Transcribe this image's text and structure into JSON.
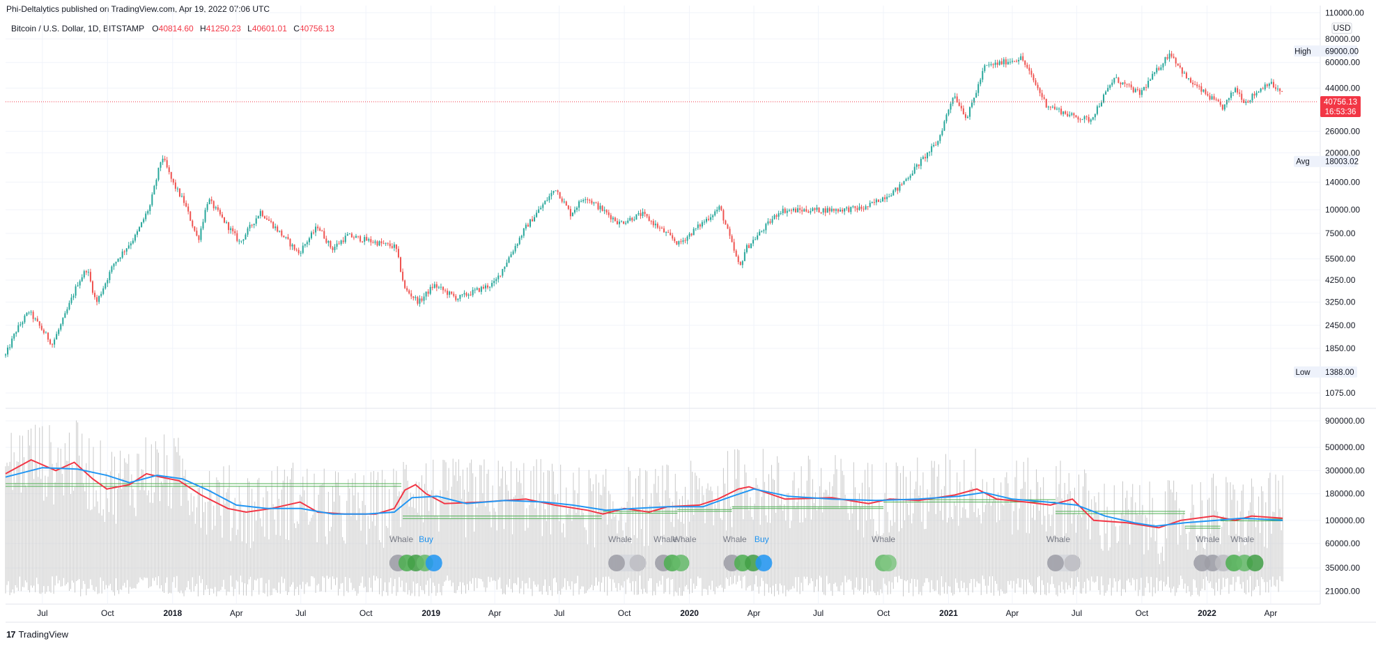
{
  "header": {
    "publish_line": "Phi-Deltalytics published on TradingView.com, Apr 19, 2022 07:06 UTC"
  },
  "legend": {
    "symbol": "Bitcoin / U.S. Dollar, 1D, BITSTAMP",
    "o_key": "O",
    "o_val": "40814.60",
    "h_key": "H",
    "h_val": "41250.23",
    "l_key": "L",
    "l_val": "40601.01",
    "c_key": "C",
    "c_val": "40756.13"
  },
  "footer": {
    "logo_text": "TradingView",
    "logo_mark": "17"
  },
  "colors": {
    "up": "#26a69a",
    "down": "#ef5350",
    "volume": "#c8c8c8",
    "fast_line": "#f23645",
    "slow_line": "#2196f3",
    "band": "#4caf50",
    "price_tag": "#f23645",
    "grid": "#f0f3fa"
  },
  "chart_data": [
    {
      "type": "candlestick",
      "scale": "log",
      "currency": "USD",
      "ylim": [
        900,
        120000
      ],
      "price_ticks": [
        "110000.00",
        "80000.00",
        "60000.00",
        "44000.00",
        "26000.00",
        "20000.00",
        "14000.00",
        "10000.00",
        "7500.00",
        "5500.00",
        "4250.00",
        "3250.00",
        "2450.00",
        "1850.00",
        "1075.00"
      ],
      "tags": {
        "high": {
          "label": "High",
          "value": "69000.00"
        },
        "avg": {
          "label": "Avg",
          "value": "18003.02"
        },
        "low": {
          "label": "Low",
          "value": "1388.00"
        },
        "last": {
          "value": "40756.13",
          "countdown": "16:53:36"
        }
      },
      "x_ticks": [
        {
          "label": "Jul",
          "bold": false
        },
        {
          "label": "Oct",
          "bold": false
        },
        {
          "label": "2018",
          "bold": true
        },
        {
          "label": "Apr",
          "bold": false
        },
        {
          "label": "Jul",
          "bold": false
        },
        {
          "label": "Oct",
          "bold": false
        },
        {
          "label": "2019",
          "bold": true
        },
        {
          "label": "Apr",
          "bold": false
        },
        {
          "label": "Jul",
          "bold": false
        },
        {
          "label": "Oct",
          "bold": false
        },
        {
          "label": "2020",
          "bold": true
        },
        {
          "label": "Apr",
          "bold": false
        },
        {
          "label": "Jul",
          "bold": false
        },
        {
          "label": "Oct",
          "bold": false
        },
        {
          "label": "2021",
          "bold": true
        },
        {
          "label": "Apr",
          "bold": false
        },
        {
          "label": "Jul",
          "bold": false
        },
        {
          "label": "Oct",
          "bold": false
        },
        {
          "label": "2022",
          "bold": true
        },
        {
          "label": "Apr",
          "bold": false
        }
      ],
      "x_dates": [
        "2017-07-01",
        "2017-10-01",
        "2018-01-01",
        "2018-04-01",
        "2018-07-01",
        "2018-10-01",
        "2019-01-01",
        "2019-04-01",
        "2019-07-01",
        "2019-10-01",
        "2020-01-01",
        "2020-04-01",
        "2020-07-01",
        "2020-10-01",
        "2021-01-01",
        "2021-04-01",
        "2021-07-01",
        "2021-10-01",
        "2022-01-01",
        "2022-04-01"
      ],
      "x_range": [
        "2017-05-10",
        "2022-06-10"
      ],
      "close_path": [
        [
          "2017-05-10",
          1700
        ],
        [
          "2017-05-25",
          2300
        ],
        [
          "2017-06-12",
          2900
        ],
        [
          "2017-07-15",
          1950
        ],
        [
          "2017-08-01",
          2700
        ],
        [
          "2017-08-20",
          4100
        ],
        [
          "2017-09-02",
          4900
        ],
        [
          "2017-09-15",
          3200
        ],
        [
          "2017-10-10",
          5200
        ],
        [
          "2017-11-10",
          7300
        ],
        [
          "2017-11-30",
          10500
        ],
        [
          "2017-12-17",
          19300
        ],
        [
          "2018-01-01",
          13900
        ],
        [
          "2018-01-17",
          11000
        ],
        [
          "2018-02-06",
          6900
        ],
        [
          "2018-02-20",
          11400
        ],
        [
          "2018-04-06",
          6700
        ],
        [
          "2018-05-05",
          9800
        ],
        [
          "2018-06-28",
          5900
        ],
        [
          "2018-07-25",
          8200
        ],
        [
          "2018-08-14",
          6200
        ],
        [
          "2018-09-05",
          7300
        ],
        [
          "2018-11-12",
          6350
        ],
        [
          "2018-11-25",
          3800
        ],
        [
          "2018-12-15",
          3250
        ],
        [
          "2019-01-05",
          4000
        ],
        [
          "2019-02-07",
          3400
        ],
        [
          "2019-04-01",
          4100
        ],
        [
          "2019-05-14",
          8000
        ],
        [
          "2019-06-26",
          13000
        ],
        [
          "2019-07-17",
          9500
        ],
        [
          "2019-08-06",
          11800
        ],
        [
          "2019-09-24",
          8500
        ],
        [
          "2019-10-26",
          9500
        ],
        [
          "2019-12-17",
          6600
        ],
        [
          "2020-02-13",
          10300
        ],
        [
          "2020-03-12",
          4900
        ],
        [
          "2020-03-20",
          6200
        ],
        [
          "2020-05-08",
          9900
        ],
        [
          "2020-07-26",
          10000
        ],
        [
          "2020-09-05",
          10200
        ],
        [
          "2020-10-21",
          12900
        ],
        [
          "2020-12-17",
          23000
        ],
        [
          "2021-01-08",
          41000
        ],
        [
          "2021-01-27",
          30500
        ],
        [
          "2021-02-21",
          57000
        ],
        [
          "2021-04-14",
          63500
        ],
        [
          "2021-05-19",
          36000
        ],
        [
          "2021-06-22",
          31500
        ],
        [
          "2021-07-20",
          29800
        ],
        [
          "2021-08-23",
          49500
        ],
        [
          "2021-09-28",
          41000
        ],
        [
          "2021-11-10",
          68000
        ],
        [
          "2021-12-04",
          49000
        ],
        [
          "2022-01-24",
          34500
        ],
        [
          "2022-02-10",
          44000
        ],
        [
          "2022-02-24",
          37000
        ],
        [
          "2022-03-29",
          47400
        ],
        [
          "2022-04-18",
          40756
        ]
      ]
    },
    {
      "type": "volume",
      "scale": "log",
      "ylim": [
        16000,
        1150000
      ],
      "volume_ticks": [
        "900000.00",
        "500000.00",
        "300000.00",
        "180000.00",
        "100000.00",
        "60000.00",
        "35000.00",
        "21000.00"
      ],
      "fast_line": [
        [
          "2017-05-10",
          280000
        ],
        [
          "2017-06-15",
          380000
        ],
        [
          "2017-07-20",
          300000
        ],
        [
          "2017-08-15",
          360000
        ],
        [
          "2017-09-10",
          250000
        ],
        [
          "2017-09-30",
          200000
        ],
        [
          "2017-11-01",
          220000
        ],
        [
          "2017-11-25",
          280000
        ],
        [
          "2017-12-15",
          260000
        ],
        [
          "2018-01-10",
          240000
        ],
        [
          "2018-02-10",
          175000
        ],
        [
          "2018-03-20",
          130000
        ],
        [
          "2018-04-15",
          120000
        ],
        [
          "2018-05-20",
          130000
        ],
        [
          "2018-06-30",
          150000
        ],
        [
          "2018-07-25",
          120000
        ],
        [
          "2018-09-01",
          115000
        ],
        [
          "2018-10-15",
          115000
        ],
        [
          "2018-11-10",
          130000
        ],
        [
          "2018-11-25",
          195000
        ],
        [
          "2018-12-10",
          220000
        ],
        [
          "2018-12-25",
          180000
        ],
        [
          "2019-01-20",
          145000
        ],
        [
          "2019-03-15",
          150000
        ],
        [
          "2019-05-15",
          160000
        ],
        [
          "2019-06-25",
          140000
        ],
        [
          "2019-08-10",
          125000
        ],
        [
          "2019-09-01",
          115000
        ],
        [
          "2019-10-01",
          130000
        ],
        [
          "2019-11-05",
          120000
        ],
        [
          "2019-12-01",
          135000
        ],
        [
          "2020-01-15",
          140000
        ],
        [
          "2020-02-10",
          160000
        ],
        [
          "2020-03-10",
          200000
        ],
        [
          "2020-03-25",
          210000
        ],
        [
          "2020-05-15",
          160000
        ],
        [
          "2020-07-20",
          165000
        ],
        [
          "2020-09-10",
          145000
        ],
        [
          "2020-10-10",
          160000
        ],
        [
          "2020-11-20",
          155000
        ],
        [
          "2021-01-10",
          175000
        ],
        [
          "2021-02-10",
          200000
        ],
        [
          "2021-03-10",
          160000
        ],
        [
          "2021-04-20",
          150000
        ],
        [
          "2021-05-25",
          140000
        ],
        [
          "2021-06-25",
          160000
        ],
        [
          "2021-07-25",
          100000
        ],
        [
          "2021-09-10",
          95000
        ],
        [
          "2021-10-25",
          85000
        ],
        [
          "2021-11-25",
          100000
        ],
        [
          "2022-01-10",
          110000
        ],
        [
          "2022-02-10",
          100000
        ],
        [
          "2022-03-05",
          110000
        ],
        [
          "2022-04-18",
          105000
        ]
      ],
      "slow_line": [
        [
          "2017-05-10",
          260000
        ],
        [
          "2017-07-01",
          320000
        ],
        [
          "2017-08-20",
          310000
        ],
        [
          "2017-09-30",
          270000
        ],
        [
          "2017-11-01",
          230000
        ],
        [
          "2017-12-10",
          270000
        ],
        [
          "2018-01-15",
          250000
        ],
        [
          "2018-02-20",
          195000
        ],
        [
          "2018-04-01",
          140000
        ],
        [
          "2018-05-15",
          130000
        ],
        [
          "2018-07-01",
          130000
        ],
        [
          "2018-08-15",
          115000
        ],
        [
          "2018-10-01",
          115000
        ],
        [
          "2018-11-10",
          120000
        ],
        [
          "2018-12-05",
          165000
        ],
        [
          "2019-01-10",
          170000
        ],
        [
          "2019-02-20",
          145000
        ],
        [
          "2019-04-15",
          155000
        ],
        [
          "2019-06-10",
          150000
        ],
        [
          "2019-07-20",
          140000
        ],
        [
          "2019-09-05",
          125000
        ],
        [
          "2019-10-15",
          130000
        ],
        [
          "2019-12-01",
          135000
        ],
        [
          "2020-01-20",
          135000
        ],
        [
          "2020-03-01",
          170000
        ],
        [
          "2020-04-01",
          200000
        ],
        [
          "2020-05-20",
          170000
        ],
        [
          "2020-07-20",
          160000
        ],
        [
          "2020-09-20",
          155000
        ],
        [
          "2020-11-20",
          160000
        ],
        [
          "2021-01-15",
          170000
        ],
        [
          "2021-02-20",
          185000
        ],
        [
          "2021-04-01",
          160000
        ],
        [
          "2021-05-20",
          150000
        ],
        [
          "2021-07-01",
          140000
        ],
        [
          "2021-08-10",
          110000
        ],
        [
          "2021-09-20",
          95000
        ],
        [
          "2021-10-20",
          88000
        ],
        [
          "2021-12-01",
          95000
        ],
        [
          "2022-01-15",
          100000
        ],
        [
          "2022-02-20",
          105000
        ],
        [
          "2022-04-18",
          100000
        ]
      ],
      "bands": [
        {
          "from": "2017-05-10",
          "to": "2018-11-20",
          "values": [
            225000,
            212000
          ]
        },
        {
          "from": "2018-11-22",
          "to": "2019-08-30",
          "values": [
            110000,
            104000
          ]
        },
        {
          "from": "2019-09-01",
          "to": "2019-12-15",
          "values": [
            122000,
            117000
          ]
        },
        {
          "from": "2019-12-15",
          "to": "2020-03-01",
          "values": [
            127000,
            122000
          ]
        },
        {
          "from": "2020-03-01",
          "to": "2020-10-01",
          "values": [
            135000,
            130000
          ]
        },
        {
          "from": "2020-10-01",
          "to": "2021-06-01",
          "values": [
            158000,
            150000
          ]
        },
        {
          "from": "2021-06-01",
          "to": "2021-12-01",
          "values": [
            122000,
            116000
          ]
        },
        {
          "from": "2021-12-01",
          "to": "2022-01-20",
          "values": [
            88000,
            84000
          ]
        },
        {
          "from": "2022-01-20",
          "to": "2022-04-18",
          "values": [
            103000,
            99000
          ]
        }
      ],
      "signals": [
        {
          "label": "Whale",
          "date": "2018-11-20",
          "color": "#787b86"
        },
        {
          "label": "Buy",
          "date": "2018-12-25",
          "color": "#2196f3"
        },
        {
          "label": "Whale",
          "date": "2019-09-25",
          "color": "#787b86"
        },
        {
          "label": "Whale",
          "date": "2019-11-28",
          "color": "#787b86"
        },
        {
          "label": "Whale",
          "date": "2019-12-25",
          "color": "#787b86"
        },
        {
          "label": "Whale",
          "date": "2020-03-05",
          "color": "#787b86"
        },
        {
          "label": "Buy",
          "date": "2020-04-12",
          "color": "#2196f3"
        },
        {
          "label": "Whale",
          "date": "2020-10-01",
          "color": "#787b86"
        },
        {
          "label": "Whale",
          "date": "2021-06-05",
          "color": "#787b86"
        },
        {
          "label": "Whale",
          "date": "2022-01-02",
          "color": "#787b86"
        },
        {
          "label": "Whale",
          "date": "2022-02-20",
          "color": "#787b86"
        }
      ],
      "markers": [
        {
          "from": "2018-11-15",
          "to": "2019-01-05",
          "circles": [
            "#9e9ea6",
            "#4caf50",
            "#43a047",
            "#66bb6a",
            "#2196f3"
          ]
        },
        {
          "from": "2019-09-20",
          "to": "2019-10-20",
          "circles": [
            "#9e9ea6",
            "#bdbdc2"
          ]
        },
        {
          "from": "2019-11-25",
          "to": "2019-12-20",
          "circles": [
            "#9e9ea6",
            "#4caf50",
            "#66bb6a"
          ]
        },
        {
          "from": "2020-03-01",
          "to": "2020-04-15",
          "circles": [
            "#9e9ea6",
            "#4caf50",
            "#43a047",
            "#2196f3"
          ]
        },
        {
          "from": "2020-10-01",
          "to": "2020-10-08",
          "circles": [
            "#66bb6a",
            "#81c784"
          ]
        },
        {
          "from": "2021-06-01",
          "to": "2021-06-25",
          "circles": [
            "#9e9ea6",
            "#bdbdc2"
          ]
        },
        {
          "from": "2021-12-25",
          "to": "2022-03-10",
          "circles": [
            "#9e9ea6",
            "#9e9ea6",
            "#bdbdc2",
            "#4caf50",
            "#66bb6a",
            "#43a047"
          ]
        }
      ]
    }
  ]
}
